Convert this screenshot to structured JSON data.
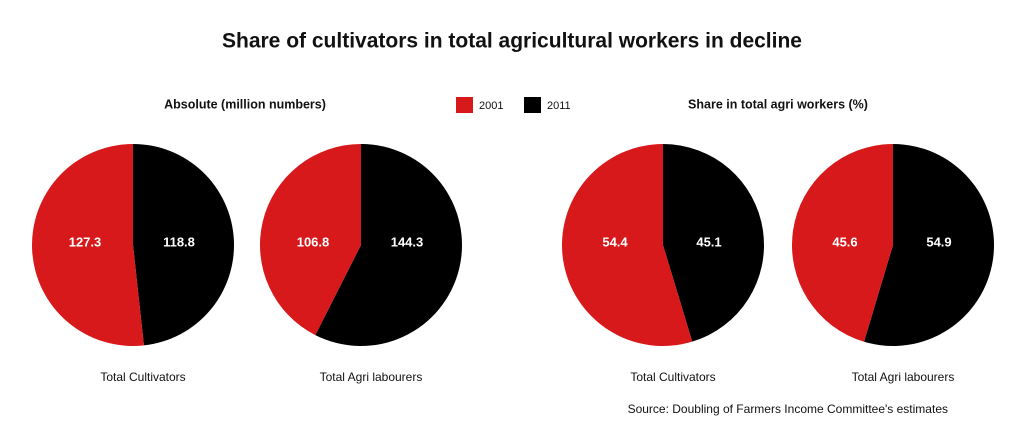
{
  "title": "Share of cultivators in total agricultural workers in decline",
  "legend": [
    {
      "name": "2001",
      "color": "#d7191c"
    },
    {
      "name": "2011",
      "color": "#000000"
    }
  ],
  "groups": [
    {
      "title": "Absolute (million numbers)"
    },
    {
      "title": "Share in total agri workers (%)"
    }
  ],
  "chart_data": [
    {
      "type": "pie",
      "label": "Total Cultivators",
      "values": [
        127.3,
        118.8
      ]
    },
    {
      "type": "pie",
      "label": "Total Agri labourers",
      "values": [
        106.8,
        144.3
      ]
    },
    {
      "type": "pie",
      "label": "Total Cultivators",
      "values": [
        54.4,
        45.1
      ]
    },
    {
      "type": "pie",
      "label": "Total Agri labourers",
      "values": [
        45.6,
        54.9
      ]
    }
  ],
  "source": "Source: Doubling of Farmers Income Committee's estimates"
}
